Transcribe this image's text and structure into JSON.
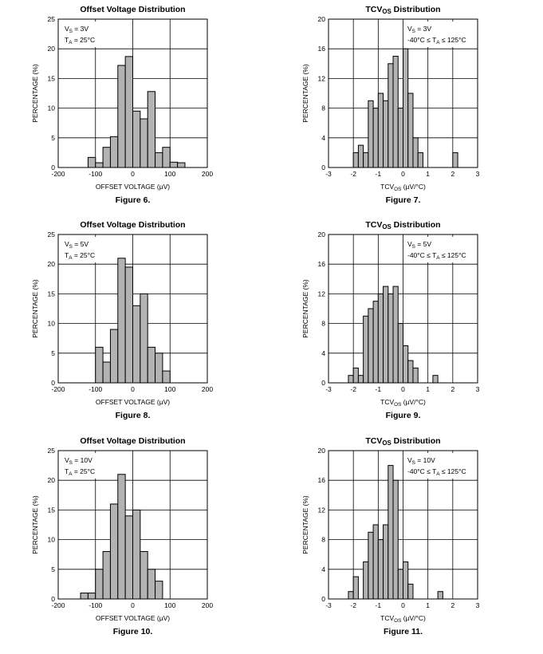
{
  "chart_data": [
    {
      "type": "bar",
      "title": "Offset Voltage Distribution",
      "caption": "Figure 6.",
      "xlabel": "OFFSET VOLTAGE (µV)",
      "ylabel": "PERCENTAGE (%)",
      "xlim": [
        -200,
        200
      ],
      "ylim": [
        0,
        25
      ],
      "xticks": [
        "-200",
        "-100",
        "0",
        "100",
        "200"
      ],
      "yticks": [
        "0",
        "5",
        "10",
        "15",
        "20",
        "25"
      ],
      "legend": [
        "VS = 3V",
        "TA = 25°C"
      ],
      "bin_width": 20,
      "bin_centers": [
        -110,
        -90,
        -70,
        -50,
        -30,
        -10,
        10,
        30,
        50,
        70,
        90,
        110,
        130
      ],
      "values": [
        1.7,
        0.8,
        3.4,
        5.2,
        17.2,
        18.7,
        9.5,
        8.2,
        12.8,
        2.5,
        3.4,
        0.9,
        0.8
      ]
    },
    {
      "type": "bar",
      "title": "TCVOS Distribution",
      "caption": "Figure 7.",
      "xlabel": "TCVOS (µV/°C)",
      "ylabel": "PERCENTAGE (%)",
      "xlim": [
        -3,
        3
      ],
      "ylim": [
        0,
        20
      ],
      "xticks": [
        "-3",
        "-2",
        "-1",
        "0",
        "1",
        "2",
        "3"
      ],
      "yticks": [
        "0",
        "4",
        "8",
        "12",
        "16",
        "20"
      ],
      "legend": [
        "VS = 3V",
        "-40°C ≤ TA ≤ 125°C"
      ],
      "bin_width": 0.2,
      "bin_centers": [
        -1.9,
        -1.7,
        -1.5,
        -1.3,
        -1.1,
        -0.9,
        -0.7,
        -0.5,
        -0.3,
        -0.1,
        0.1,
        0.3,
        0.5,
        0.7,
        2.1
      ],
      "values": [
        2,
        3,
        2,
        9,
        8,
        10,
        9,
        14,
        15,
        8,
        16,
        10,
        4,
        2,
        2
      ]
    },
    {
      "type": "bar",
      "title": "Offset Voltage Distribution",
      "caption": "Figure 8.",
      "xlabel": "OFFSET VOLTAGE (µV)",
      "ylabel": "PERCENTAGE (%)",
      "xlim": [
        -200,
        200
      ],
      "ylim": [
        0,
        25
      ],
      "xticks": [
        "-200",
        "-100",
        "0",
        "100",
        "200"
      ],
      "yticks": [
        "0",
        "5",
        "10",
        "15",
        "20",
        "25"
      ],
      "legend": [
        "VS = 5V",
        "TA = 25°C"
      ],
      "bin_width": 20,
      "bin_centers": [
        -90,
        -70,
        -50,
        -30,
        -10,
        10,
        30,
        50,
        70,
        90
      ],
      "values": [
        6,
        3.5,
        9,
        21,
        19.5,
        13,
        15,
        6,
        5,
        2
      ]
    },
    {
      "type": "bar",
      "title": "TCVOS Distribution",
      "caption": "Figure 9.",
      "xlabel": "TCVOS (µV/°C)",
      "ylabel": "PERCENTAGE (%)",
      "xlim": [
        -3,
        3
      ],
      "ylim": [
        0,
        20
      ],
      "xticks": [
        "-3",
        "-2",
        "-1",
        "0",
        "1",
        "2",
        "3"
      ],
      "yticks": [
        "0",
        "4",
        "8",
        "12",
        "16",
        "20"
      ],
      "legend": [
        "VS = 5V",
        "-40°C ≤ TA ≤ 125°C"
      ],
      "bin_width": 0.2,
      "bin_centers": [
        -2.1,
        -1.9,
        -1.7,
        -1.5,
        -1.3,
        -1.1,
        -0.9,
        -0.7,
        -0.5,
        -0.3,
        -0.1,
        0.1,
        0.3,
        0.5,
        1.3
      ],
      "values": [
        1,
        2,
        1,
        9,
        10,
        11,
        12,
        13,
        12,
        13,
        8,
        5,
        3,
        2,
        1
      ]
    },
    {
      "type": "bar",
      "title": "Offset Voltage Distribution",
      "caption": "Figure 10.",
      "xlabel": "OFFSET VOLTAGE (µV)",
      "ylabel": "PERCENTAGE (%)",
      "xlim": [
        -200,
        200
      ],
      "ylim": [
        0,
        25
      ],
      "xticks": [
        "-200",
        "-100",
        "0",
        "100",
        "200"
      ],
      "yticks": [
        "0",
        "5",
        "10",
        "15",
        "20",
        "25"
      ],
      "legend": [
        "VS = 10V",
        "TA = 25°C"
      ],
      "bin_width": 20,
      "bin_centers": [
        -130,
        -110,
        -90,
        -70,
        -50,
        -30,
        -10,
        10,
        30,
        50,
        70
      ],
      "values": [
        1,
        1,
        5,
        8,
        16,
        21,
        14,
        15,
        8,
        5,
        3
      ]
    },
    {
      "type": "bar",
      "title": "TCVOS Distribution",
      "caption": "Figure 11.",
      "xlabel": "TCVOS (µV/°C)",
      "ylabel": "PERCENTAGE (%)",
      "xlim": [
        -3,
        3
      ],
      "ylim": [
        0,
        20
      ],
      "xticks": [
        "-3",
        "-2",
        "-1",
        "0",
        "1",
        "2",
        "3"
      ],
      "yticks": [
        "0",
        "4",
        "8",
        "12",
        "16",
        "20"
      ],
      "legend": [
        "VS = 10V",
        "-40°C ≤ TA ≤ 125°C"
      ],
      "bin_width": 0.2,
      "bin_centers": [
        -2.1,
        -1.9,
        -1.5,
        -1.3,
        -1.1,
        -0.9,
        -0.7,
        -0.5,
        -0.3,
        -0.1,
        0.1,
        0.3,
        1.5
      ],
      "values": [
        1,
        3,
        5,
        9,
        10,
        8,
        10,
        18,
        16,
        4,
        5,
        2,
        1
      ]
    }
  ]
}
